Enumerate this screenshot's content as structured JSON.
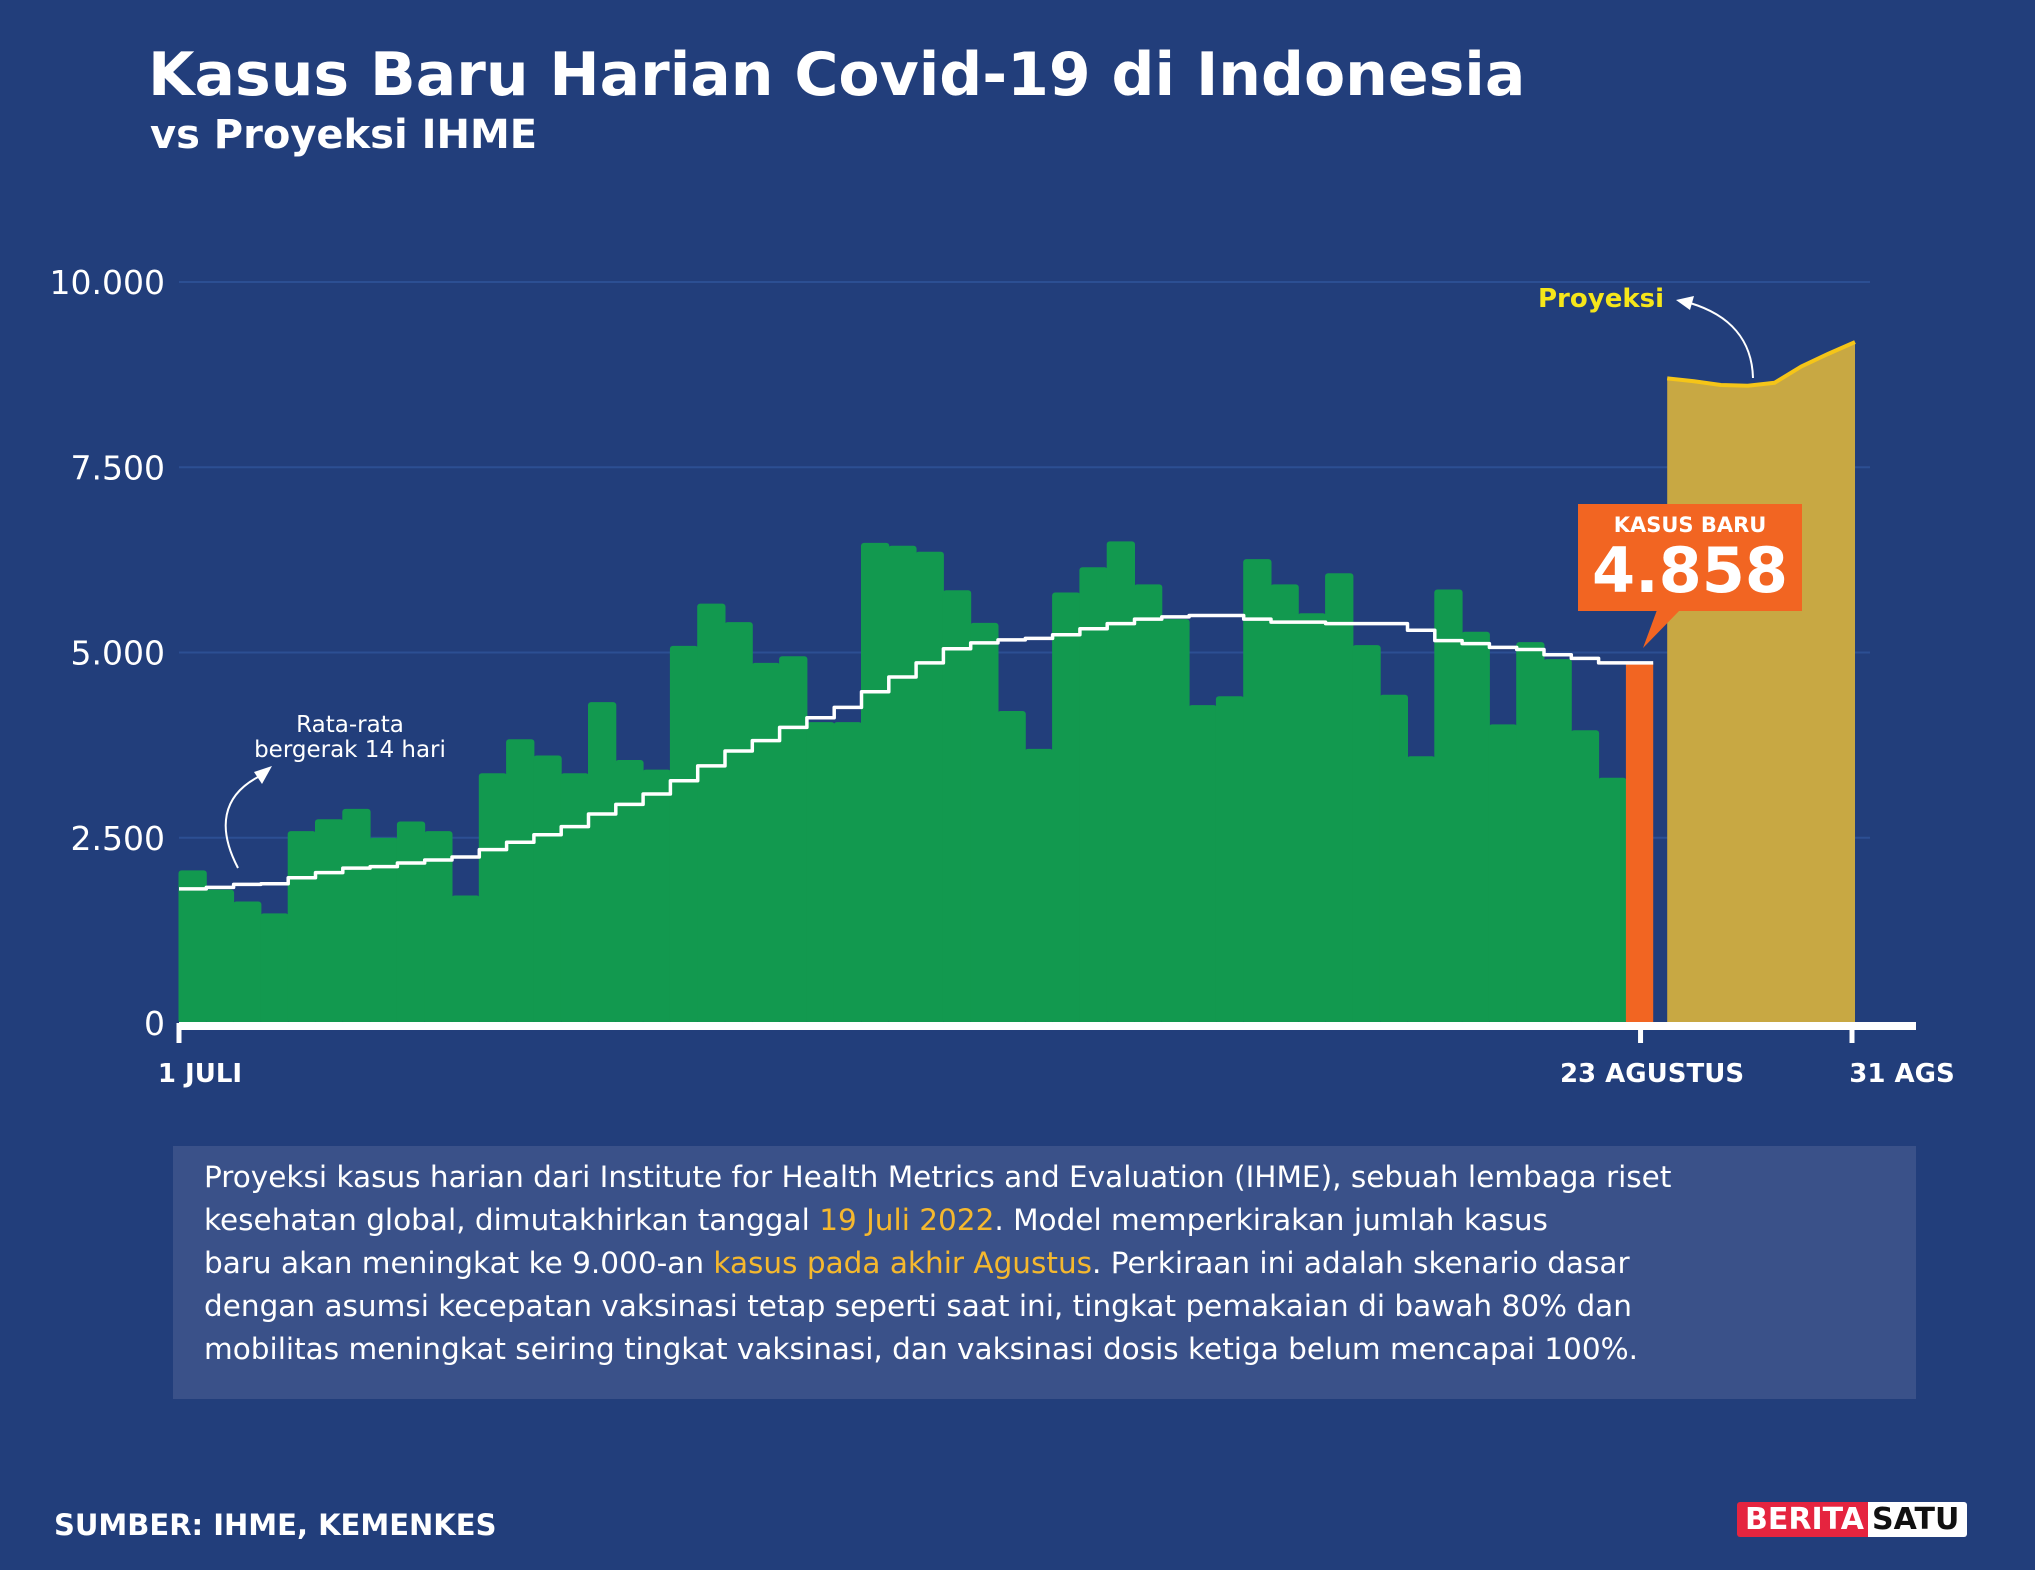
{
  "header": {
    "title": "Kasus Baru Harian Covid-19 di Indonesia",
    "subtitle": "vs Proyeksi IHME"
  },
  "chart_data": {
    "type": "bar",
    "ylim": [
      0,
      10000
    ],
    "y_ticks": [
      "0",
      "2.500",
      "5.000",
      "7.500",
      "10.000"
    ],
    "y_tick_values": [
      0,
      2500,
      5000,
      7500,
      10000
    ],
    "x_tick_labels": [
      "1 JULI",
      "23 AGUSTUS",
      "31 AGS"
    ],
    "grid": true,
    "colors": {
      "daily": "#12994f",
      "latest": "#f26522",
      "projection": "#c8a843",
      "projection_line": "#f5c518",
      "moving_average": "#ffffff"
    },
    "daily_cases": {
      "dates": [
        "1 Jul",
        "2 Jul",
        "3 Jul",
        "4 Jul",
        "5 Jul",
        "6 Jul",
        "7 Jul",
        "8 Jul",
        "9 Jul",
        "10 Jul",
        "11 Jul",
        "12 Jul",
        "13 Jul",
        "14 Jul",
        "15 Jul",
        "16 Jul",
        "17 Jul",
        "18 Jul",
        "19 Jul",
        "20 Jul",
        "21 Jul",
        "22 Jul",
        "23 Jul",
        "24 Jul",
        "25 Jul",
        "26 Jul",
        "27 Jul",
        "28 Jul",
        "29 Jul",
        "30 Jul",
        "31 Jul",
        "1 Agu",
        "2 Agu",
        "3 Agu",
        "4 Agu",
        "5 Agu",
        "6 Agu",
        "7 Agu",
        "8 Agu",
        "9 Agu",
        "10 Agu",
        "11 Agu",
        "12 Agu",
        "13 Agu",
        "14 Agu",
        "15 Agu",
        "16 Agu",
        "17 Agu",
        "18 Agu",
        "19 Agu",
        "20 Agu",
        "21 Agu",
        "22 Agu"
      ],
      "values": [
        2060,
        1800,
        1640,
        1480,
        2590,
        2750,
        2890,
        2500,
        2720,
        2590,
        1720,
        3370,
        3830,
        3610,
        3370,
        4330,
        3550,
        3420,
        5090,
        5660,
        5410,
        4860,
        4950,
        4060,
        4060,
        6480,
        6440,
        6360,
        5840,
        5400,
        4210,
        3700,
        5810,
        6150,
        6500,
        5920,
        5450,
        4290,
        4410,
        6260,
        5920,
        5530,
        6070,
        5100,
        4430,
        3600,
        5850,
        5280,
        4030,
        5140,
        4910,
        3950,
        3310
      ]
    },
    "latest": {
      "date": "23 Agustus",
      "label": "KASUS BARU",
      "value": 4858,
      "value_text": "4.858"
    },
    "moving_average": {
      "label_line1": "Rata-rata",
      "label_line2": "bergerak 14 hari",
      "values": [
        1810,
        1830,
        1870,
        1880,
        1960,
        2030,
        2090,
        2110,
        2160,
        2200,
        2240,
        2340,
        2440,
        2540,
        2650,
        2820,
        2950,
        3090,
        3270,
        3470,
        3670,
        3810,
        3990,
        4120,
        4260,
        4470,
        4670,
        4860,
        5050,
        5130,
        5170,
        5190,
        5240,
        5320,
        5390,
        5450,
        5480,
        5500,
        5500,
        5450,
        5410,
        5410,
        5390,
        5390,
        5390,
        5300,
        5160,
        5120,
        5070,
        5040,
        4970,
        4920,
        4860,
        4860
      ]
    },
    "projection": {
      "label": "Proyeksi",
      "dates": [
        "24 Agu",
        "25 Agu",
        "26 Agu",
        "27 Agu",
        "28 Agu",
        "29 Agu",
        "30 Agu",
        "31 Agu"
      ],
      "values": [
        8700,
        8660,
        8610,
        8600,
        8640,
        8860,
        9030,
        9190
      ]
    }
  },
  "note": {
    "lines": [
      [
        {
          "text": "Proyeksi kasus harian dari Institute for Health Metrics and Evaluation (IHME), sebuah lembaga riset",
          "hl": false
        }
      ],
      [
        {
          "text": "kesehatan  global, dimutakhirkan tanggal ",
          "hl": false
        },
        {
          "text": "19 Juli 2022",
          "hl": true
        },
        {
          "text": ". Model memperkirakan jumlah kasus",
          "hl": false
        }
      ],
      [
        {
          "text": "baru akan meningkat ke 9.000-an ",
          "hl": false
        },
        {
          "text": "kasus pada akhir Agustus",
          "hl": true
        },
        {
          "text": ". Perkiraan ini adalah skenario dasar",
          "hl": false
        }
      ],
      [
        {
          "text": "dengan asumsi kecepatan vaksinasi tetap seperti saat ini, tingkat pemakaian di bawah 80% dan",
          "hl": false
        }
      ],
      [
        {
          "text": "mobilitas meningkat seiring tingkat vaksinasi, dan vaksinasi dosis ketiga belum mencapai 100%.",
          "hl": false
        }
      ]
    ]
  },
  "footer": {
    "source": "SUMBER: IHME, KEMENKES",
    "logo_part1": "BERITA",
    "logo_part2": "SATU"
  }
}
